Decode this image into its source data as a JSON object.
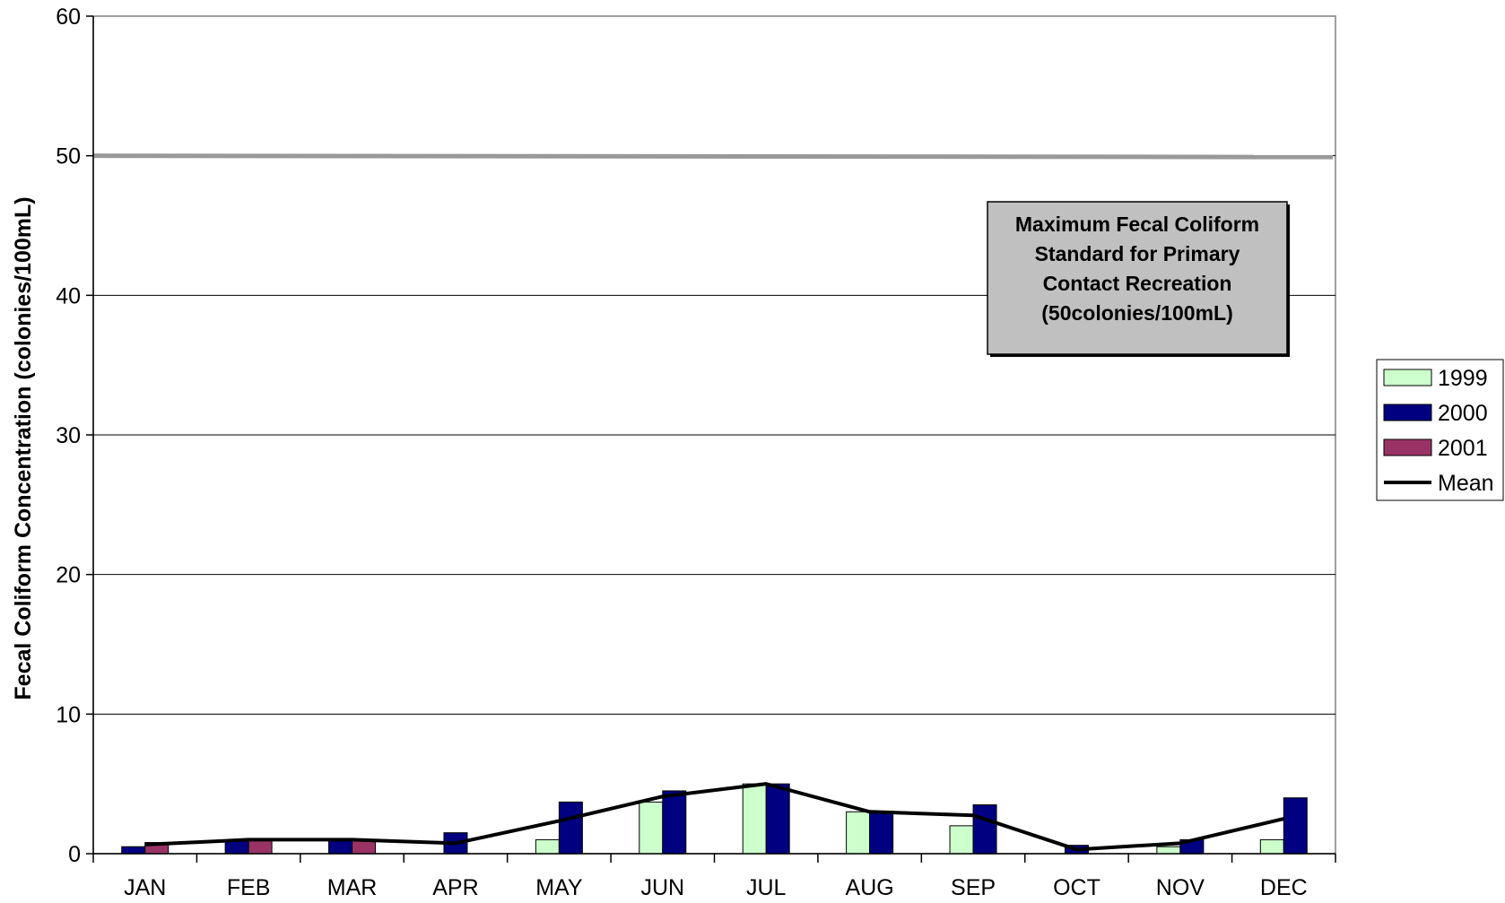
{
  "chart_data": {
    "type": "bar",
    "title": "",
    "xlabel": "",
    "ylabel": "Fecal Coliform Concentration (colonies/100mL)",
    "ylim": [
      0,
      60
    ],
    "yticks": [
      0,
      10,
      20,
      30,
      40,
      50,
      60
    ],
    "grid": true,
    "legend_position": "right",
    "categories": [
      "JAN",
      "FEB",
      "MAR",
      "APR",
      "MAY",
      "JUN",
      "JUL",
      "AUG",
      "SEP",
      "OCT",
      "NOV",
      "DEC"
    ],
    "series": [
      {
        "name": "1999",
        "type": "bar",
        "color": "#ccffcc",
        "values": [
          null,
          null,
          null,
          null,
          1,
          3.7,
          5,
          3,
          2,
          null,
          0.5,
          1
        ]
      },
      {
        "name": "2000",
        "type": "bar",
        "color": "#000080",
        "values": [
          0.5,
          1,
          1,
          1.5,
          3.7,
          4.5,
          5,
          3,
          3.5,
          0.6,
          1,
          4
        ]
      },
      {
        "name": "2001",
        "type": "bar",
        "color": "#993366",
        "values": [
          0.8,
          1,
          1,
          null,
          null,
          null,
          null,
          null,
          null,
          null,
          null,
          null
        ]
      },
      {
        "name": "Mean",
        "type": "line",
        "color": "#000000",
        "values": [
          0.65,
          1,
          1,
          0.75,
          2.35,
          4.1,
          5,
          3,
          2.75,
          0.3,
          0.75,
          2.5
        ]
      }
    ],
    "reference_line": {
      "value": 50,
      "color": "#999999"
    },
    "annotation": {
      "lines": [
        "Maximum Fecal Coliform",
        "Standard for Primary",
        "Contact Recreation",
        "(50colonies/100mL)"
      ],
      "background": "#c0c0c0"
    }
  }
}
